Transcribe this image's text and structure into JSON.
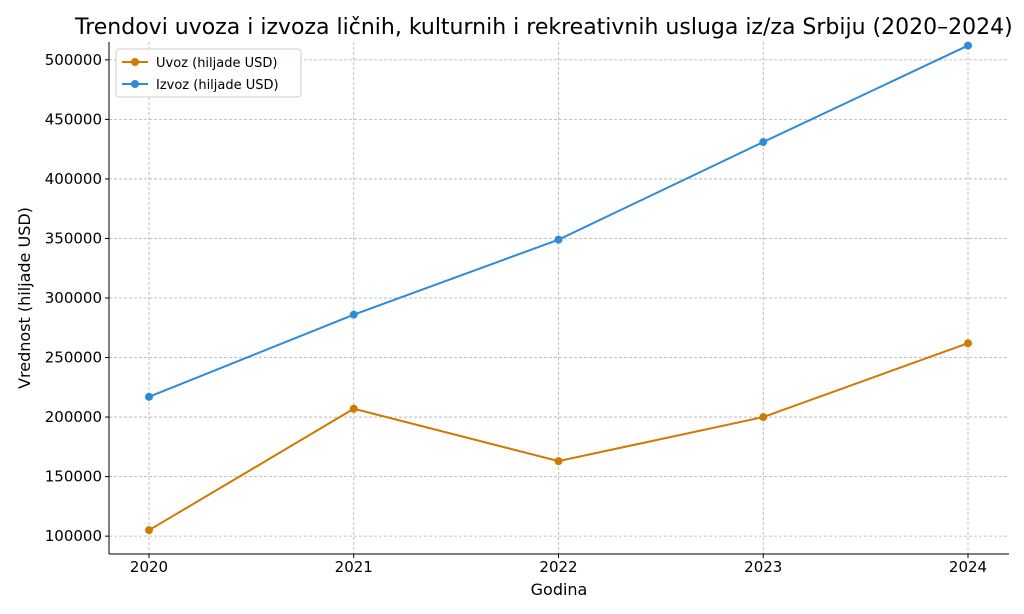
{
  "chart_data": {
    "type": "line",
    "title": "Trendovi uvoza i izvoza ličnih, kulturnih i rekreativnih usluga iz/za Srbiju (2020–2024)",
    "xlabel": "Godina",
    "ylabel": "Vrednost (hiljade USD)",
    "categories": [
      "2020",
      "2021",
      "2022",
      "2023",
      "2024"
    ],
    "ylim": [
      85000,
      515000
    ],
    "yticks": [
      100000,
      150000,
      200000,
      250000,
      300000,
      350000,
      400000,
      450000,
      500000
    ],
    "grid": true,
    "legend_position": "top-left",
    "series": [
      {
        "name": "Uvoz (hiljade USD)",
        "color": "#d07a00",
        "values": [
          105000,
          207000,
          163000,
          200000,
          262000
        ]
      },
      {
        "name": "Izvoz (hiljade USD)",
        "color": "#2e8bd6",
        "values": [
          217000,
          286000,
          349000,
          431000,
          512000
        ]
      }
    ]
  }
}
